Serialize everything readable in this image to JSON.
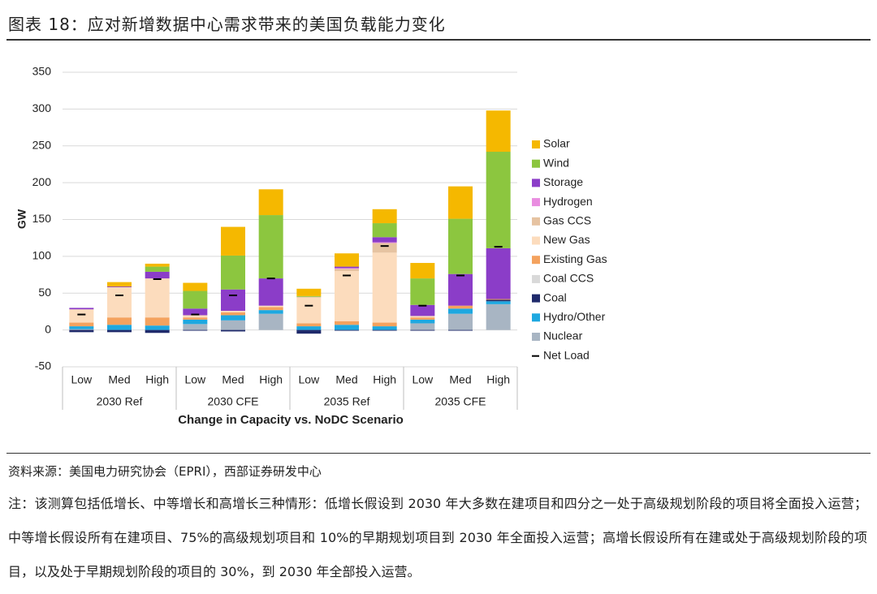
{
  "header": {
    "title": "图表 18：应对新增数据中心需求带来的美国负载能力变化"
  },
  "chart_data": {
    "type": "stacked-bar",
    "y_label": "GW",
    "x_label": "Change in Capacity vs. NoDC Scenario",
    "categories": [
      "Low",
      "Med",
      "High",
      "Low",
      "Med",
      "High",
      "Low",
      "Med",
      "High",
      "Low",
      "Med",
      "High"
    ],
    "category_groups": [
      "2030 Ref",
      "2030 CFE",
      "2035 Ref",
      "2035 CFE"
    ],
    "ylim": [
      -50,
      350
    ],
    "yticks": [
      -50,
      0,
      50,
      100,
      150,
      200,
      250,
      300,
      350
    ],
    "grid": true,
    "series": [
      {
        "name": "Nuclear",
        "color": "#a8b5c3",
        "values": [
          1,
          0,
          0,
          8,
          13,
          22,
          0,
          0,
          0,
          9,
          22,
          35
        ]
      },
      {
        "name": "Hydro/Other",
        "color": "#1ea8e0",
        "values": [
          4,
          7,
          6,
          6,
          7,
          5,
          5,
          7,
          5,
          5,
          7,
          4
        ]
      },
      {
        "name": "Coal",
        "color": "#1f2a6b",
        "values": [
          -3,
          -3,
          -4,
          -1,
          -2,
          0,
          -5,
          -1,
          -1,
          -1,
          -1,
          2
        ]
      },
      {
        "name": "Coal CCS",
        "color": "#d9d9d9",
        "values": [
          0,
          0,
          0,
          0,
          0,
          0,
          0,
          0,
          0,
          0,
          0,
          0
        ]
      },
      {
        "name": "Existing Gas",
        "color": "#f4a25e",
        "values": [
          5,
          10,
          11,
          3,
          4,
          4,
          4,
          5,
          5,
          3,
          4,
          1
        ]
      },
      {
        "name": "New Gas",
        "color": "#fcdcbd",
        "values": [
          18,
          41,
          53,
          3,
          2,
          2,
          35,
          68,
          95,
          2,
          0,
          0
        ]
      },
      {
        "name": "Gas CCS",
        "color": "#e6c3a1",
        "values": [
          0,
          0,
          0,
          0,
          0,
          0,
          1,
          3,
          13,
          0,
          0,
          0
        ]
      },
      {
        "name": "Hydrogen",
        "color": "#e98de0",
        "values": [
          0,
          0,
          0,
          0,
          0,
          0,
          0,
          1,
          1,
          0,
          0,
          0
        ]
      },
      {
        "name": "Storage",
        "color": "#8b3dc8",
        "values": [
          2,
          1,
          9,
          9,
          29,
          37,
          0,
          2,
          7,
          15,
          43,
          69
        ]
      },
      {
        "name": "Wind",
        "color": "#8cc63f",
        "values": [
          0,
          0,
          7,
          24,
          46,
          86,
          1,
          0,
          19,
          36,
          75,
          131
        ]
      },
      {
        "name": "Solar",
        "color": "#f5b800",
        "values": [
          0,
          6,
          4,
          11,
          39,
          35,
          10,
          18,
          19,
          21,
          44,
          56
        ]
      }
    ],
    "net_load": {
      "name": "Net Load",
      "color": "#000000",
      "values": [
        21,
        47,
        69,
        21,
        47,
        70,
        33,
        74,
        114,
        33,
        74,
        113
      ]
    }
  },
  "footer": {
    "source": "资料来源：美国电力研究协会（EPRI），西部证券研发中心",
    "note": "注：该测算包括低增长、中等增长和高增长三种情形：低增长假设到 2030 年大多数在建项目和四分之一处于高级规划阶段的项目将全面投入运营；中等增长假设所有在建项目、75%的高级规划项目和 10%的早期规划项目到 2030 年全面投入运营；高增长假设所有在建或处于高级规划阶段的项目，以及处于早期规划阶段的项目的 30%，到 2030 年全部投入运营。"
  }
}
